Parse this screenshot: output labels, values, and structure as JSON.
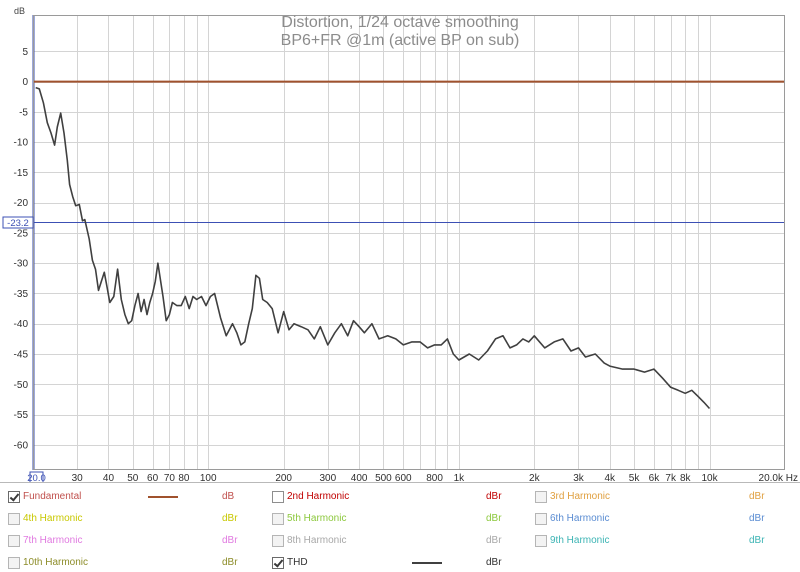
{
  "chart_data": {
    "type": "line",
    "title": "Distortion, 1/24 octave smoothing",
    "subtitle": "BP6+FR @1m (active BP on sub)",
    "y_unit": "dB",
    "x_unit": "Hz",
    "x_scale": "log",
    "xlim": [
      20,
      20000
    ],
    "ylim": [
      -64,
      11
    ],
    "grid": true,
    "y_ticks": [
      5,
      0,
      -5,
      -10,
      -15,
      -20,
      -25,
      -30,
      -35,
      -40,
      -45,
      -50,
      -55,
      -60
    ],
    "y_tick_labels": [
      "5",
      "0",
      "-5",
      "-10",
      "-15",
      "-20",
      "-25",
      "-30",
      "-35",
      "-40",
      "-45",
      "-50",
      "-55",
      "-60"
    ],
    "x_tick_labels": [
      {
        "value": 20,
        "label": "20.0"
      },
      {
        "value": 30,
        "label": "30"
      },
      {
        "value": 40,
        "label": "40"
      },
      {
        "value": 50,
        "label": "50"
      },
      {
        "value": 60,
        "label": "60"
      },
      {
        "value": 70,
        "label": "70"
      },
      {
        "value": 80,
        "label": "80"
      },
      {
        "value": 100,
        "label": "100"
      },
      {
        "value": 200,
        "label": "200"
      },
      {
        "value": 300,
        "label": "300"
      },
      {
        "value": 400,
        "label": "400"
      },
      {
        "value": 500,
        "label": "500"
      },
      {
        "value": 600,
        "label": "600"
      },
      {
        "value": 800,
        "label": "800"
      },
      {
        "value": 1000,
        "label": "1k"
      },
      {
        "value": 2000,
        "label": "2k"
      },
      {
        "value": 3000,
        "label": "3k"
      },
      {
        "value": 4000,
        "label": "4k"
      },
      {
        "value": 5000,
        "label": "5k"
      },
      {
        "value": 6000,
        "label": "6k"
      },
      {
        "value": 7000,
        "label": "7k"
      },
      {
        "value": 8000,
        "label": "8k"
      },
      {
        "value": 10000,
        "label": "10k"
      },
      {
        "value": 20000,
        "label": "20.0k Hz"
      }
    ],
    "cursor": {
      "y_value": -23.2,
      "y_label": "-23.2",
      "x_label": "20.0"
    },
    "series": [
      {
        "name": "Fundamental",
        "color": "#a0522d",
        "x": [
          20,
          20000
        ],
        "y": [
          0,
          0
        ]
      },
      {
        "name": "THD",
        "color": "#404040",
        "x": [
          20.5,
          21.2,
          22,
          22.8,
          23.6,
          24.4,
          25,
          25.8,
          26.6,
          27.4,
          28,
          28.8,
          29.6,
          30.6,
          31.5,
          32.2,
          33.5,
          34.5,
          35.5,
          36.5,
          37.5,
          38.5,
          39.5,
          40.5,
          42,
          43.5,
          45,
          46.5,
          48,
          49.5,
          51,
          52.5,
          54,
          55.5,
          57,
          58.5,
          60,
          61.5,
          63,
          66,
          68,
          70,
          72,
          75,
          78,
          81,
          84,
          87,
          90,
          94,
          98,
          102,
          106,
          112,
          118,
          125,
          130,
          135,
          140,
          145,
          150,
          155,
          160,
          165,
          172,
          180,
          190,
          200,
          210,
          220,
          235,
          250,
          265,
          280,
          300,
          320,
          340,
          360,
          380,
          400,
          420,
          450,
          480,
          520,
          560,
          600,
          650,
          700,
          750,
          800,
          850,
          900,
          950,
          1000,
          1100,
          1200,
          1300,
          1400,
          1500,
          1600,
          1700,
          1800,
          1900,
          2000,
          2200,
          2400,
          2600,
          2800,
          3000,
          3200,
          3500,
          3800,
          4000,
          4500,
          5000,
          5500,
          6000,
          6500,
          7000,
          7500,
          8000,
          8500,
          9000,
          9500,
          10000
        ],
        "y": [
          -1,
          -1.2,
          -3.5,
          -6.8,
          -8.5,
          -10.5,
          -7.5,
          -5.2,
          -8.5,
          -13,
          -17,
          -19,
          -20.5,
          -20.3,
          -23,
          -22.8,
          -26,
          -29.5,
          -31,
          -34.5,
          -33,
          -31.5,
          -34,
          -36.5,
          -35.5,
          -31,
          -36,
          -38.5,
          -40,
          -39.5,
          -37,
          -35,
          -38,
          -36,
          -38.5,
          -36.5,
          -35,
          -33,
          -30,
          -35.5,
          -39.5,
          -38.5,
          -36.5,
          -37,
          -37,
          -35.5,
          -37.5,
          -35.5,
          -36,
          -35.5,
          -37,
          -35.5,
          -35,
          -39,
          -42,
          -40,
          -41.5,
          -43.5,
          -43,
          -40,
          -37.5,
          -32,
          -32.5,
          -36,
          -36.5,
          -37.5,
          -41.5,
          -38,
          -41,
          -40,
          -40.5,
          -41,
          -42.5,
          -40.5,
          -43.5,
          -41.5,
          -40,
          -42,
          -39.5,
          -40.5,
          -41.5,
          -40,
          -42.5,
          -42,
          -42.5,
          -43.5,
          -43,
          -43,
          -44,
          -43.5,
          -43.5,
          -42.5,
          -45,
          -46,
          -45,
          -46,
          -44.5,
          -42.5,
          -42,
          -44,
          -43.5,
          -42.5,
          -43,
          -42,
          -44,
          -43,
          -42.5,
          -44.5,
          -44,
          -45.5,
          -45,
          -46.5,
          -47,
          -47.5,
          -47.5,
          -48,
          -47.5,
          -49,
          -50.5,
          -51,
          -51.5,
          -51,
          -52,
          -53,
          -54
        ]
      }
    ]
  },
  "legend": {
    "items": [
      {
        "label": "Fundamental",
        "checked": true,
        "enabled": true,
        "color": "#c0504d",
        "unit": "dB",
        "unit_color": "#c0504d",
        "swatch": "#a0522d"
      },
      {
        "label": "2nd Harmonic",
        "checked": false,
        "enabled": true,
        "color": "#c00000",
        "unit": "dBr",
        "unit_color": "#c00000",
        "swatch": null
      },
      {
        "label": "3rd Harmonic",
        "checked": false,
        "enabled": false,
        "color": "#e0a040",
        "unit": "dBr",
        "unit_color": "#e0a040",
        "swatch": null
      },
      {
        "label": "4th Harmonic",
        "checked": false,
        "enabled": false,
        "color": "#c8c800",
        "unit": "dBr",
        "unit_color": "#c8c800",
        "swatch": null
      },
      {
        "label": "5th Harmonic",
        "checked": false,
        "enabled": false,
        "color": "#8cc83c",
        "unit": "dBr",
        "unit_color": "#8cc83c",
        "swatch": null
      },
      {
        "label": "6th Harmonic",
        "checked": false,
        "enabled": false,
        "color": "#5a8cd2",
        "unit": "dBr",
        "unit_color": "#5a8cd2",
        "swatch": null
      },
      {
        "label": "7th Harmonic",
        "checked": false,
        "enabled": false,
        "color": "#e07ae0",
        "unit": "dBr",
        "unit_color": "#e07ae0",
        "swatch": null
      },
      {
        "label": "8th Harmonic",
        "checked": false,
        "enabled": false,
        "color": "#a8a8a8",
        "unit": "dBr",
        "unit_color": "#a8a8a8",
        "swatch": null
      },
      {
        "label": "9th Harmonic",
        "checked": false,
        "enabled": false,
        "color": "#3cb4b4",
        "unit": "dBr",
        "unit_color": "#3cb4b4",
        "swatch": null
      },
      {
        "label": "10th Harmonic",
        "checked": false,
        "enabled": false,
        "color": "#8c8c28",
        "unit": "dBr",
        "unit_color": "#8c8c28",
        "swatch": null
      },
      {
        "label": "THD",
        "checked": true,
        "enabled": true,
        "color": "#303030",
        "unit": "dBr",
        "unit_color": "#303030",
        "swatch": "#404040"
      }
    ]
  }
}
